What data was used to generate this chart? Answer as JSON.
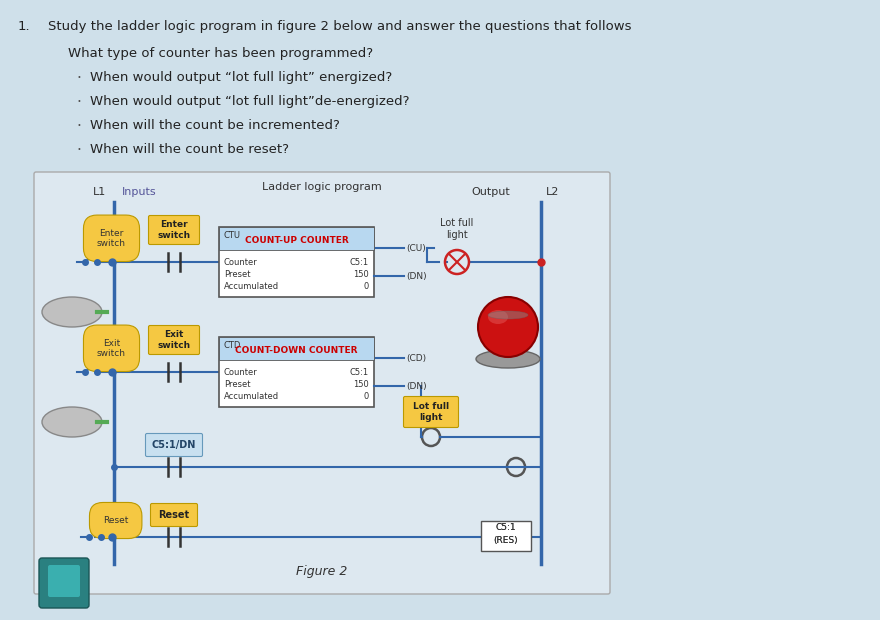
{
  "bg_color": "#cfe0ea",
  "diagram_bg": "#e8f0f5",
  "title_text": "Study the ladder logic program in figure 2 below and answer the questions that follows",
  "questions": [
    "What type of counter has been programmed?",
    "When would output “lot full light” energized?",
    "When would output “lot full light”de-energized?",
    "When will the count be incremented?",
    "When will the count be reset?"
  ],
  "diagram_title": "Ladder logic program",
  "figure_label": "Figure 2",
  "ctu_line1": "CTU",
  "ctu_line2": "COUNT-UP COUNTER",
  "ctd_line1": "CTD",
  "ctd_line2": "COUNT-DOWN COUNTER",
  "ctu_counter": "C5:1",
  "ctu_preset": 150,
  "ctu_accumulated": 0,
  "ctd_counter": "C5:1",
  "ctd_preset": 150,
  "ctd_accumulated": 0,
  "enter_switch": "Enter\nswitch",
  "exit_switch": "Exit\nswitch",
  "reset_label": "Reset",
  "c5dn_label": "C5:1/DN",
  "lot_full_light": "Lot full\nlight",
  "res_label": "C5:1\n(RES)",
  "l1_label": "L1",
  "l2_label": "L2",
  "inputs_label": "Inputs",
  "output_label": "Output",
  "yellow": "#f5c842",
  "blue_header": "#b8d8f0",
  "light_blue_box": "#c8e0f0",
  "rail_color": "#3366aa",
  "rung_color": "#3366aa",
  "box_color": "#444444",
  "text_color": "#222222",
  "red_text": "#cc0000"
}
